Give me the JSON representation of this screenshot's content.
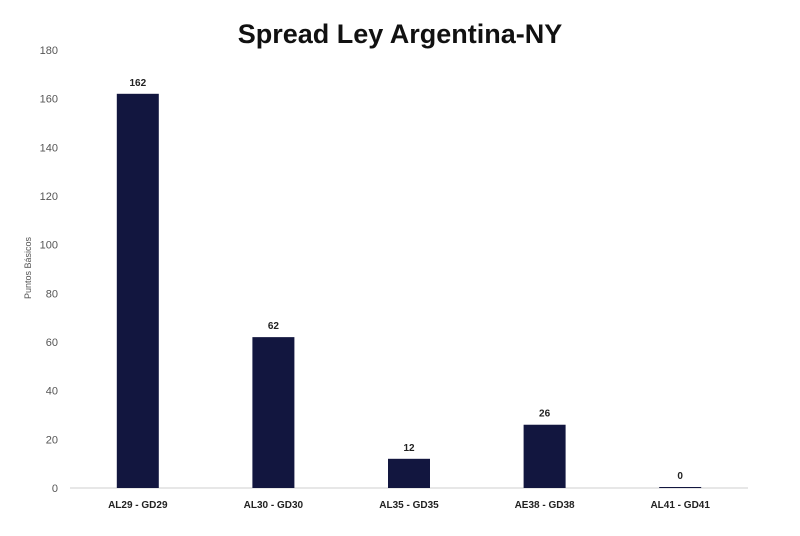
{
  "chart_data": {
    "type": "bar",
    "title": "Spread Ley Argentina-NY",
    "xlabel": "",
    "ylabel": "Puntos Básicos",
    "categories": [
      "AL29 - GD29",
      "AL30 - GD30",
      "AL35 - GD35",
      "AE38 - GD38",
      "AL41 - GD41"
    ],
    "values": [
      162,
      62,
      12,
      26,
      0
    ],
    "data_labels": [
      "162",
      "62",
      "12",
      "26",
      "0"
    ],
    "ylim": [
      0,
      180
    ],
    "yticks": [
      0,
      20,
      40,
      60,
      80,
      100,
      120,
      140,
      160,
      180
    ],
    "grid": false,
    "legend": "none",
    "bar_color": "#12163f"
  }
}
